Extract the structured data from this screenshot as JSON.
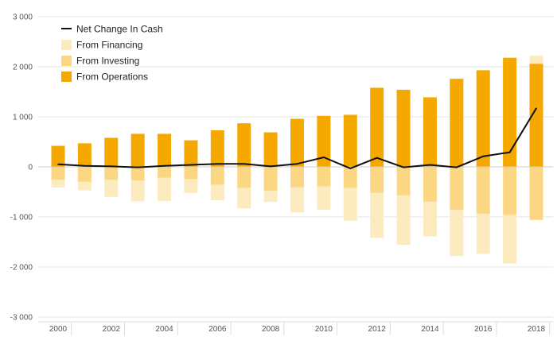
{
  "chart_data": {
    "type": "bar",
    "x": [
      2000,
      2001,
      2002,
      2003,
      2004,
      2005,
      2006,
      2007,
      2008,
      2009,
      2010,
      2011,
      2012,
      2013,
      2014,
      2015,
      2016,
      2017,
      2018
    ],
    "x_tick_labels": [
      "2000",
      "2002",
      "2004",
      "2006",
      "2008",
      "2010",
      "2012",
      "2014",
      "2016",
      "2018"
    ],
    "y_tick_labels": [
      "3 000",
      "2 000",
      "1 000",
      "0",
      "-1 000",
      "-2 000",
      "-3 000"
    ],
    "y_ticks": [
      3000,
      2000,
      1000,
      0,
      -1000,
      -2000,
      -3000
    ],
    "ylim": [
      -3000,
      3000
    ],
    "stacked": true,
    "grid": true,
    "legend_position": "top-left",
    "series": [
      {
        "name": "From Operations",
        "kind": "bar",
        "color": "#f5a800",
        "values": [
          420,
          470,
          580,
          660,
          660,
          530,
          730,
          870,
          690,
          960,
          1020,
          1040,
          1580,
          1540,
          1390,
          1760,
          1930,
          2180,
          2060
        ]
      },
      {
        "name": "From Investing",
        "kind": "bar",
        "color": "#fcd783",
        "values": [
          -260,
          -300,
          -260,
          -270,
          -220,
          -250,
          -360,
          -420,
          -480,
          -410,
          -390,
          -420,
          -520,
          -570,
          -700,
          -860,
          -940,
          -960,
          -1060
        ]
      },
      {
        "name": "From Financing",
        "kind": "bar",
        "color": "#fdebc0",
        "values": [
          -150,
          -170,
          -340,
          -420,
          -460,
          -270,
          -310,
          -410,
          -220,
          -500,
          -470,
          -660,
          -900,
          -990,
          -690,
          -920,
          -800,
          -970,
          160
        ]
      },
      {
        "name": "Net Change In Cash",
        "kind": "line",
        "color": "#111111",
        "values": [
          50,
          20,
          10,
          -10,
          20,
          40,
          60,
          60,
          10,
          60,
          190,
          -30,
          180,
          -10,
          40,
          -10,
          210,
          290,
          1170
        ]
      }
    ],
    "legend": [
      "Net Change In Cash",
      "From Financing",
      "From Investing",
      "From Operations"
    ]
  }
}
